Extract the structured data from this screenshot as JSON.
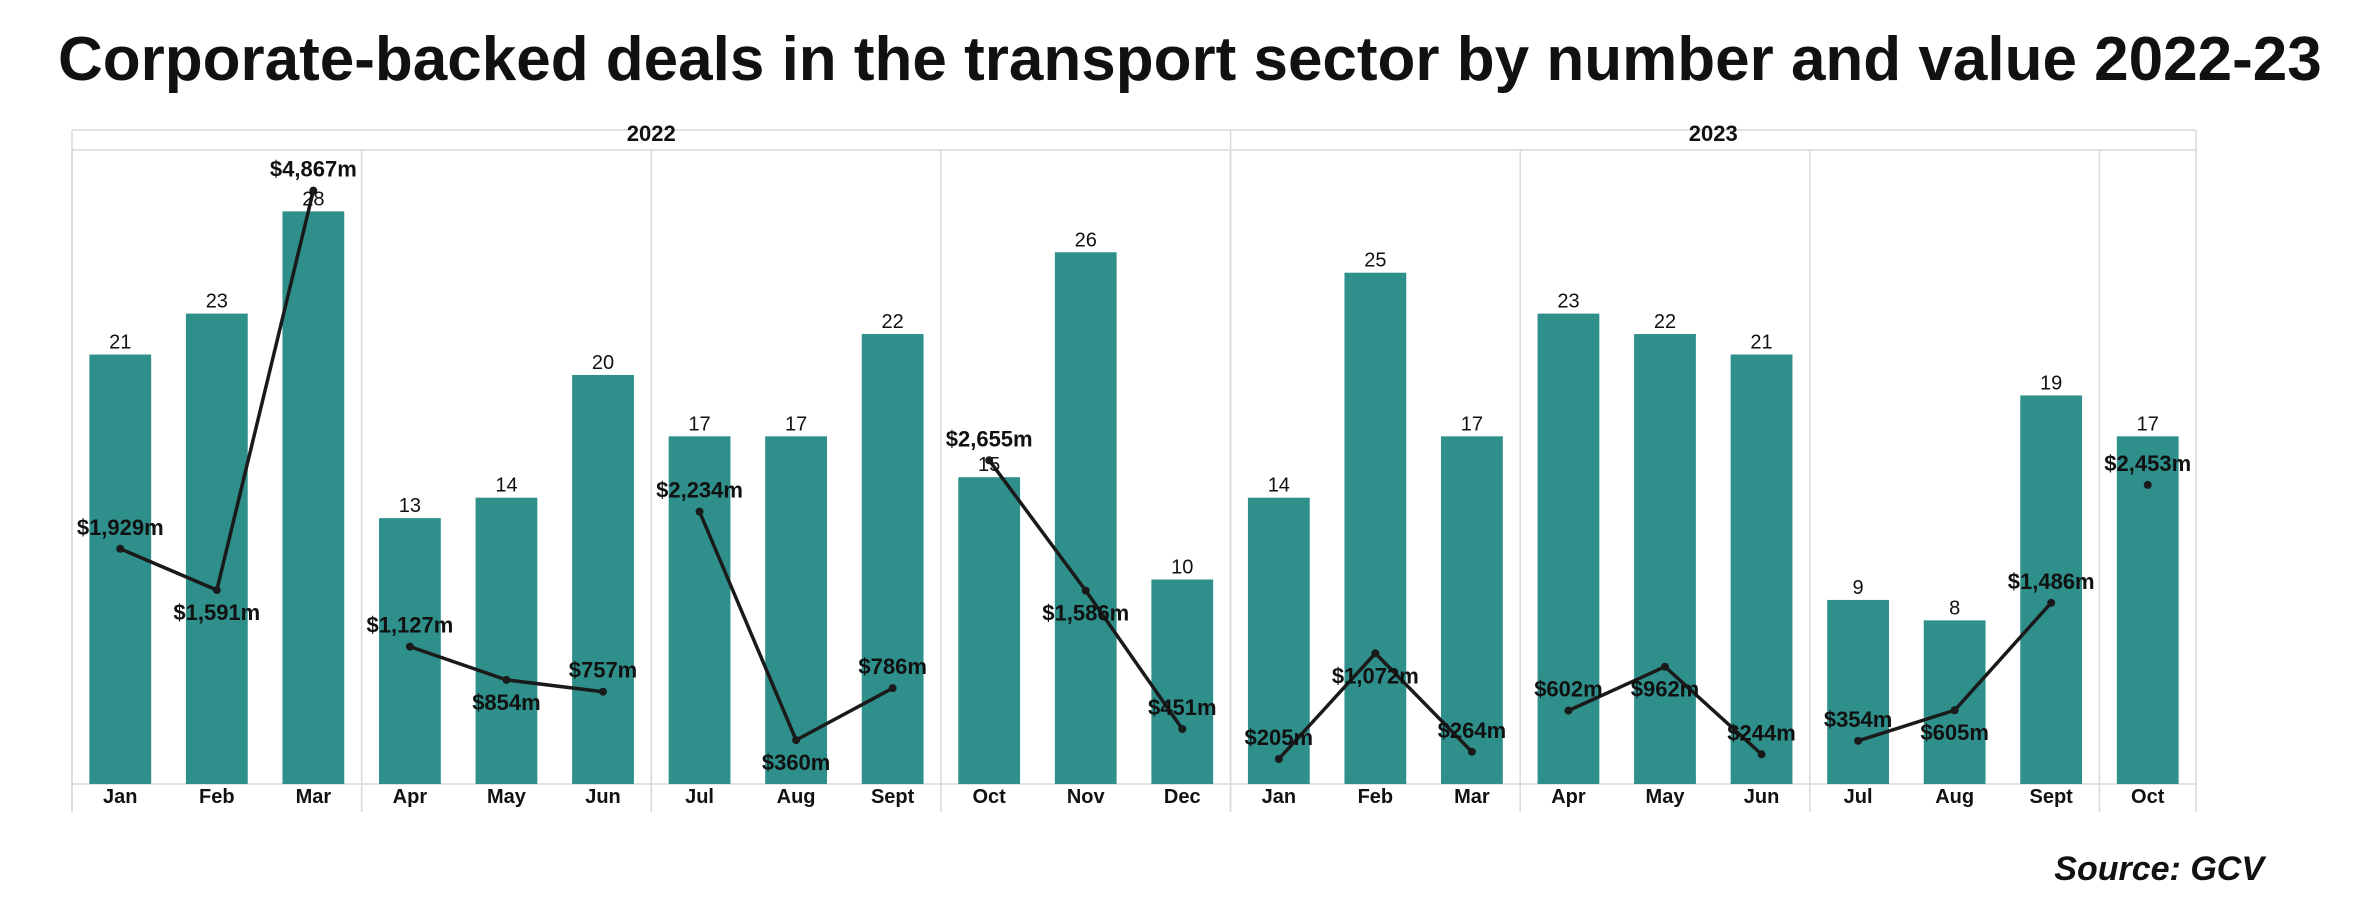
{
  "title": "Corporate-backed deals in the transport sector by number and value 2022-23",
  "source": "Source: GCV",
  "colors": {
    "bar": "#2e8f8b",
    "line": "#1a1a1a",
    "grid": "#d9d9d9"
  },
  "chart_data": {
    "type": "bar",
    "title": "Corporate-backed deals in the transport sector by number and value 2022-23",
    "years": [
      {
        "label": "2022",
        "start": 0,
        "end": 12
      },
      {
        "label": "2023",
        "start": 12,
        "end": 22
      }
    ],
    "quarters": [
      [
        0,
        3
      ],
      [
        3,
        6
      ],
      [
        6,
        9
      ],
      [
        9,
        12
      ],
      [
        12,
        15
      ],
      [
        15,
        18
      ],
      [
        18,
        21
      ],
      [
        21,
        22
      ]
    ],
    "categories": [
      "Jan",
      "Feb",
      "Mar",
      "Apr",
      "May",
      "Jun",
      "Jul",
      "Aug",
      "Sept",
      "Oct",
      "Nov",
      "Dec",
      "Jan",
      "Feb",
      "Mar",
      "Apr",
      "May",
      "Jun",
      "Jul",
      "Aug",
      "Sept",
      "Oct"
    ],
    "series": [
      {
        "type": "bar",
        "values": [
          21,
          23,
          28,
          13,
          14,
          20,
          17,
          17,
          22,
          15,
          26,
          10,
          14,
          25,
          17,
          23,
          22,
          21,
          9,
          8,
          19,
          17
        ]
      },
      {
        "type": "line",
        "unit": "$m",
        "values": [
          1929,
          1591,
          4867,
          1127,
          854,
          757,
          2234,
          360,
          786,
          2655,
          1586,
          451,
          205,
          1072,
          264,
          602,
          962,
          244,
          354,
          605,
          1486,
          2453
        ],
        "labels": [
          "$1,929m",
          "$1,591m",
          "$4,867m",
          "$1,127m",
          "$854m",
          "$757m",
          "$2,234m",
          "$360m",
          "$786m",
          "$2,655m",
          "$1,586m",
          "$451m",
          "$205m",
          "$1,072m",
          "$264m",
          "$602m",
          "$962m",
          "$244m",
          "$354m",
          "$605m",
          "$1,486m",
          "$2,453m"
        ]
      }
    ],
    "line_segments": [
      [
        0,
        2
      ],
      [
        3,
        5
      ],
      [
        6,
        8
      ],
      [
        9,
        11
      ],
      [
        12,
        14
      ],
      [
        15,
        17
      ],
      [
        18,
        20
      ],
      [
        21,
        21
      ]
    ],
    "ylim_bars": [
      0,
      31
    ],
    "ylim_values": [
      0,
      5200
    ],
    "grid": true,
    "legend": "none"
  }
}
